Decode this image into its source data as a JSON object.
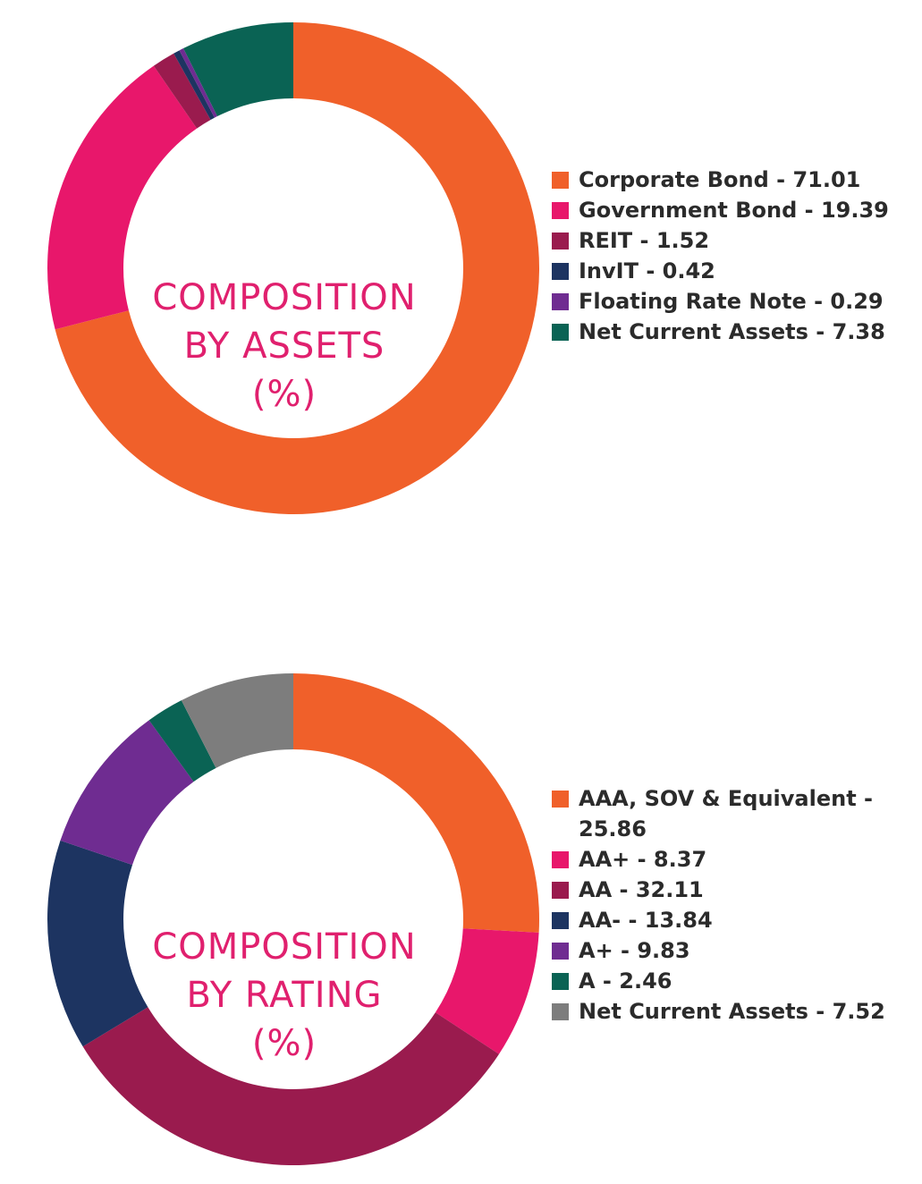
{
  "chart_data": [
    {
      "type": "pie",
      "donut": true,
      "title_lines": [
        "COMPOSITION",
        "BY ASSETS",
        "(%)"
      ],
      "start_angle": "12 o'clock",
      "direction": "clockwise",
      "legend_position": "right",
      "series": [
        {
          "name": "Corporate Bond",
          "value": 71.01,
          "color": "#f0602a",
          "label": "Corporate Bond - 71.01"
        },
        {
          "name": "Government Bond",
          "value": 19.39,
          "color": "#e8176b",
          "label": "Government Bond - 19.39"
        },
        {
          "name": "REIT",
          "value": 1.52,
          "color": "#9a1b4e",
          "label": "REIT - 1.52"
        },
        {
          "name": "InvIT",
          "value": 0.42,
          "color": "#1d3461",
          "label": "InvIT - 0.42"
        },
        {
          "name": "Floating Rate Note",
          "value": 0.29,
          "color": "#6f2c91",
          "label": "Floating Rate Note - 0.29"
        },
        {
          "name": "Net Current Assets",
          "value": 7.38,
          "color": "#0a6354",
          "label": "Net Current Assets - 7.38"
        }
      ]
    },
    {
      "type": "pie",
      "donut": true,
      "title_lines": [
        "COMPOSITION",
        "BY RATING",
        "(%)"
      ],
      "start_angle": "12 o'clock",
      "direction": "clockwise",
      "legend_position": "right",
      "series": [
        {
          "name": "AAA, SOV & Equivalent",
          "value": 25.86,
          "color": "#f0602a",
          "label": "AAA, SOV & Equivalent - 25.86"
        },
        {
          "name": "AA+",
          "value": 8.37,
          "color": "#e8176b",
          "label": "AA+ - 8.37"
        },
        {
          "name": "AA",
          "value": 32.11,
          "color": "#9a1b4e",
          "label": "AA - 32.11"
        },
        {
          "name": "AA-",
          "value": 13.84,
          "color": "#1d3461",
          "label": "AA- - 13.84"
        },
        {
          "name": "A+",
          "value": 9.83,
          "color": "#6f2c91",
          "label": "A+ - 9.83"
        },
        {
          "name": "A",
          "value": 2.46,
          "color": "#0a6354",
          "label": "A - 2.46"
        },
        {
          "name": "Net Current Assets",
          "value": 7.52,
          "color": "#7d7d7d",
          "label": "Net Current Assets - 7.52"
        }
      ]
    }
  ]
}
